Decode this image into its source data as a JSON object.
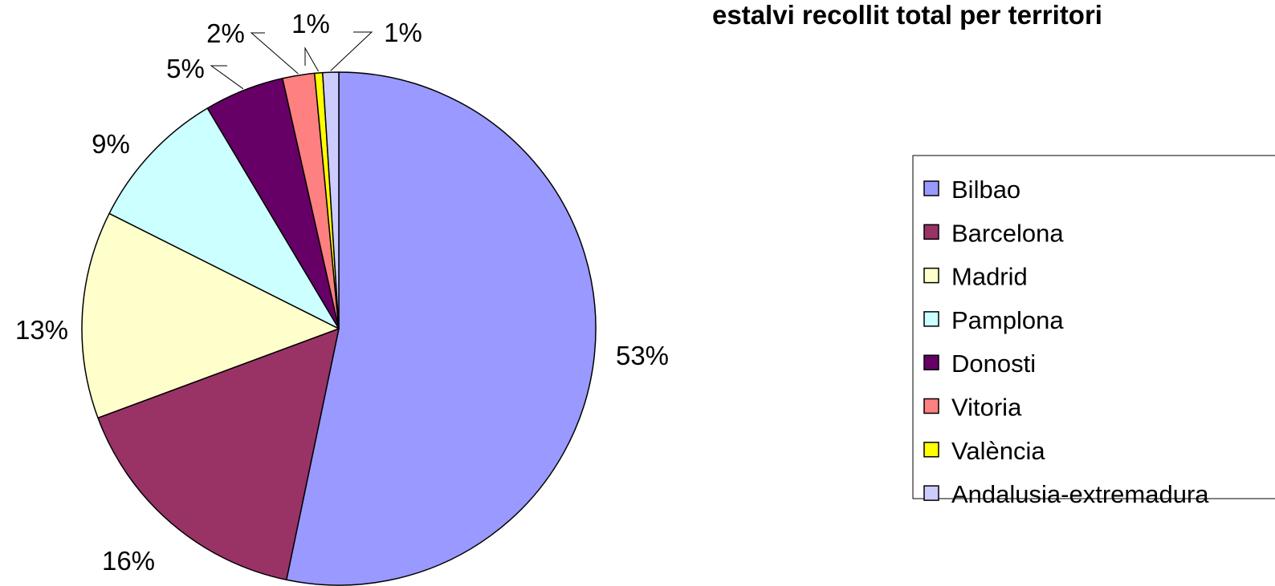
{
  "chart_data": {
    "type": "pie",
    "title": "estalvi recollit total per territori",
    "legend_position": "right",
    "slices": [
      {
        "name": "Bilbao",
        "value": 53,
        "label": "53%",
        "color": "#9999FF"
      },
      {
        "name": "Barcelona",
        "value": 16,
        "label": "16%",
        "color": "#993366"
      },
      {
        "name": "Madrid",
        "value": 13,
        "label": "13%",
        "color": "#FFFFCC"
      },
      {
        "name": "Pamplona",
        "value": 9,
        "label": "9%",
        "color": "#CCFFFF"
      },
      {
        "name": "Donosti",
        "value": 5,
        "label": "5%",
        "color": "#660066"
      },
      {
        "name": "Vitoria",
        "value": 2,
        "label": "2%",
        "color": "#FF8080"
      },
      {
        "name": "València",
        "value": 0.5,
        "label": "1%",
        "color": "#FFFF00"
      },
      {
        "name": "Andalusia-extremadura",
        "value": 1,
        "label": "1%",
        "color": "#CCCCFF"
      }
    ]
  }
}
